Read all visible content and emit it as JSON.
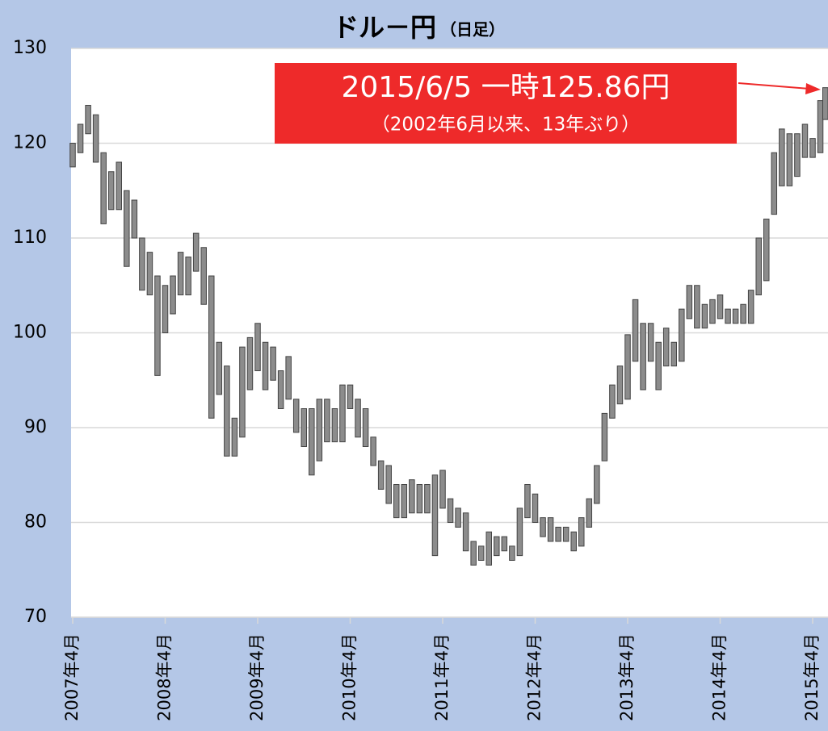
{
  "chart_data": {
    "type": "range",
    "title": "ドル－円",
    "subtitle": "（日足）",
    "annotation": {
      "line1": "2015/6/5 一時125.86円",
      "line2": "（2002年6月以来、13年ぶり）",
      "color": "#ee2a2a"
    },
    "categories": [
      "2007年4月",
      null,
      null,
      null,
      null,
      null,
      null,
      null,
      null,
      null,
      null,
      null,
      "2008年4月",
      null,
      null,
      null,
      null,
      null,
      null,
      null,
      null,
      null,
      null,
      null,
      "2009年4月",
      null,
      null,
      null,
      null,
      null,
      null,
      null,
      null,
      null,
      null,
      null,
      "2010年4月",
      null,
      null,
      null,
      null,
      null,
      null,
      null,
      null,
      null,
      null,
      null,
      "2011年4月",
      null,
      null,
      null,
      null,
      null,
      null,
      null,
      null,
      null,
      null,
      null,
      "2012年4月",
      null,
      null,
      null,
      null,
      null,
      null,
      null,
      null,
      null,
      null,
      null,
      "2013年4月",
      null,
      null,
      null,
      null,
      null,
      null,
      null,
      null,
      null,
      null,
      null,
      "2014年4月",
      null,
      null,
      null,
      null,
      null,
      null,
      null,
      null,
      null,
      null,
      null,
      "2015年4月",
      null,
      null
    ],
    "high": [
      120,
      122,
      124,
      123,
      119,
      117,
      118,
      115,
      114,
      110,
      108.5,
      106,
      105,
      106,
      108.5,
      108,
      110.5,
      109,
      106,
      99,
      96.5,
      91,
      98.5,
      99.5,
      101,
      99,
      98.5,
      96,
      97.5,
      93,
      92,
      92,
      93,
      93,
      92,
      94.5,
      94.5,
      93,
      92,
      89,
      86.5,
      86,
      84,
      84,
      84.5,
      84,
      84,
      85,
      85.5,
      82.5,
      81.5,
      81,
      78,
      77.5,
      79,
      78.5,
      78.5,
      77.5,
      81.5,
      84,
      83,
      80.5,
      80.5,
      79.5,
      79.5,
      79,
      80.5,
      82.5,
      86,
      91.5,
      94.5,
      96.5,
      99.8,
      103.5,
      101,
      101,
      99,
      100.5,
      99,
      102.5,
      105,
      105,
      103,
      103.5,
      104,
      102.5,
      102.5,
      103,
      104.5,
      110,
      112,
      119,
      121.5,
      121,
      121,
      122,
      120.5,
      124.5,
      125.86
    ],
    "low": [
      117.5,
      119,
      121,
      118,
      111.5,
      113,
      113,
      107,
      110,
      104.5,
      104,
      95.5,
      100,
      102,
      104,
      104,
      106.5,
      103,
      91,
      93.5,
      87,
      87,
      89,
      94,
      96,
      94,
      95,
      92,
      93,
      89.5,
      88,
      85,
      86.5,
      88.5,
      88.5,
      88.5,
      92,
      89,
      88,
      86,
      83.5,
      82,
      80.5,
      80.5,
      81,
      81,
      81,
      76.5,
      81.5,
      80,
      79.5,
      77,
      75.5,
      76,
      75.5,
      76.5,
      77,
      76,
      76.5,
      80.5,
      80,
      78.5,
      78,
      78,
      78,
      77,
      77.5,
      79.5,
      82,
      86.5,
      91,
      92.5,
      93,
      97,
      94,
      97,
      94,
      96.5,
      96.5,
      97,
      101.5,
      100.5,
      100.5,
      101,
      101.5,
      101,
      101,
      101,
      101,
      104,
      105.5,
      112.5,
      115.5,
      115.5,
      116.5,
      118.5,
      118.5,
      119,
      122.5
    ],
    "color": "#8c8c8c",
    "edge_color": "#444444",
    "ylim": [
      70,
      130
    ],
    "yticks": [
      70,
      80,
      90,
      100,
      110,
      120,
      130
    ],
    "grid": true
  }
}
